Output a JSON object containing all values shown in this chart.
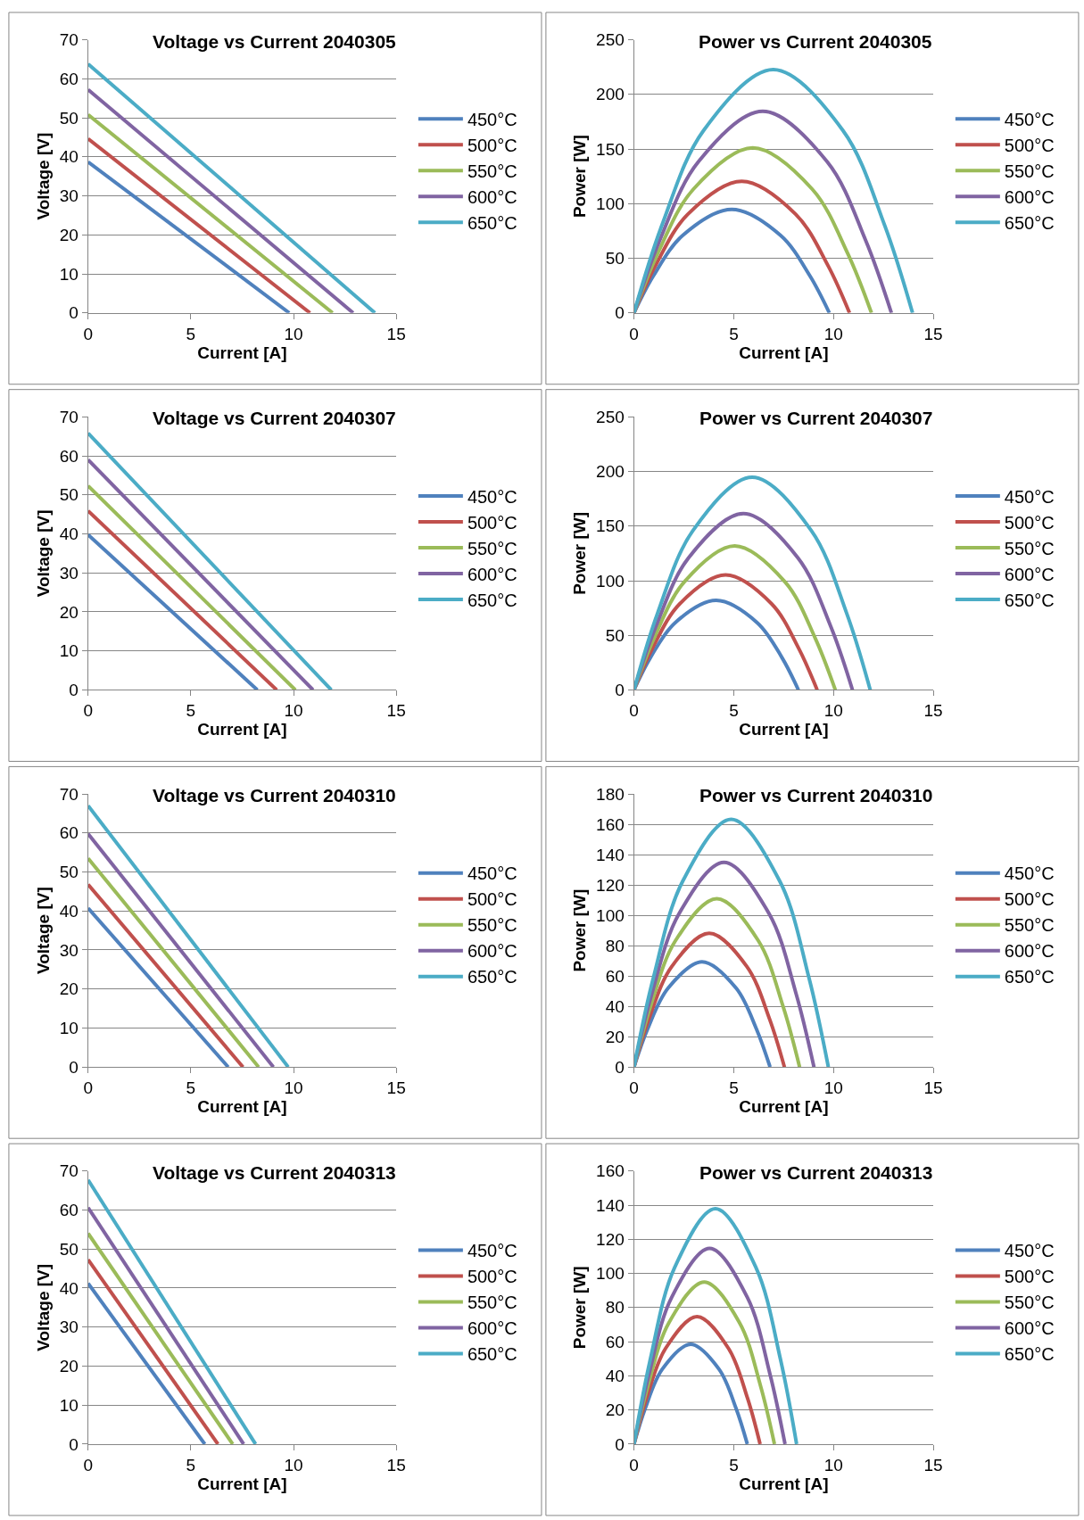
{
  "chart_data": [
    {
      "type": "line",
      "title": "Voltage vs Current 2040305",
      "xlabel": "Current [A]",
      "ylabel": "Voltage [V]",
      "xlim": [
        0,
        15
      ],
      "xticks": [
        0,
        5,
        10,
        15
      ],
      "ylim": [
        0,
        70
      ],
      "yticks": [
        0,
        10,
        20,
        30,
        40,
        50,
        60,
        70
      ],
      "grid": "y",
      "legend": "right",
      "series": [
        {
          "name": "450°C",
          "color": "#4f81bd",
          "x": [
            0,
            9.79
          ],
          "values": [
            38.7,
            0
          ]
        },
        {
          "name": "500°C",
          "color": "#c0504d",
          "x": [
            0,
            10.8
          ],
          "values": [
            44.6,
            0
          ]
        },
        {
          "name": "550°C",
          "color": "#9bbb59",
          "x": [
            0,
            11.9
          ],
          "values": [
            50.8,
            0
          ]
        },
        {
          "name": "600°C",
          "color": "#8064a2",
          "x": [
            0,
            12.9
          ],
          "values": [
            57.2,
            0
          ]
        },
        {
          "name": "650°C",
          "color": "#4bacc6",
          "x": [
            0,
            13.96
          ],
          "values": [
            63.8,
            0
          ]
        }
      ]
    },
    {
      "type": "line",
      "title": "Power vs Current 2040305",
      "xlabel": "Current [A]",
      "ylabel": "Power [W]",
      "xlim": [
        0,
        15
      ],
      "xticks": [
        0,
        5,
        10,
        15
      ],
      "ylim": [
        0,
        250
      ],
      "yticks": [
        0,
        50,
        100,
        150,
        200,
        250
      ],
      "grid": "y",
      "legend": "right",
      "series": [
        {
          "name": "450°C",
          "color": "#4f81bd",
          "x": [
            0,
            0.98,
            2.45,
            4.9,
            7.34,
            8.81,
            9.79
          ],
          "values": [
            0,
            34.1,
            71.0,
            94.7,
            71.0,
            34.1,
            0
          ]
        },
        {
          "name": "500°C",
          "color": "#c0504d",
          "x": [
            0,
            1.08,
            2.7,
            5.4,
            8.1,
            9.72,
            10.8
          ],
          "values": [
            0,
            43.4,
            90.3,
            120.4,
            90.3,
            43.4,
            0
          ]
        },
        {
          "name": "550°C",
          "color": "#9bbb59",
          "x": [
            0,
            1.19,
            2.98,
            5.95,
            8.93,
            10.71,
            11.9
          ],
          "values": [
            0,
            54.4,
            113.3,
            151.1,
            113.3,
            54.4,
            0
          ]
        },
        {
          "name": "600°C",
          "color": "#8064a2",
          "x": [
            0,
            1.29,
            3.23,
            6.45,
            9.68,
            11.61,
            12.9
          ],
          "values": [
            0,
            66.4,
            138.4,
            184.5,
            138.4,
            66.4,
            0
          ]
        },
        {
          "name": "650°C",
          "color": "#4bacc6",
          "x": [
            0,
            1.4,
            3.49,
            6.98,
            10.47,
            12.56,
            13.96
          ],
          "values": [
            0,
            80.2,
            167.0,
            222.7,
            167.0,
            80.2,
            0
          ]
        }
      ]
    },
    {
      "type": "line",
      "title": "Voltage vs Current 2040307",
      "xlabel": "Current [A]",
      "ylabel": "Voltage [V]",
      "xlim": [
        0,
        15
      ],
      "xticks": [
        0,
        5,
        10,
        15
      ],
      "ylim": [
        0,
        70
      ],
      "yticks": [
        0,
        10,
        20,
        30,
        40,
        50,
        60,
        70
      ],
      "grid": "y",
      "legend": "right",
      "series": [
        {
          "name": "450°C",
          "color": "#4f81bd",
          "x": [
            0,
            8.24
          ],
          "values": [
            39.8,
            0
          ]
        },
        {
          "name": "500°C",
          "color": "#c0504d",
          "x": [
            0,
            9.18
          ],
          "values": [
            45.9,
            0
          ]
        },
        {
          "name": "550°C",
          "color": "#9bbb59",
          "x": [
            0,
            10.09
          ],
          "values": [
            52.3,
            0
          ]
        },
        {
          "name": "600°C",
          "color": "#8064a2",
          "x": [
            0,
            10.95
          ],
          "values": [
            59.0,
            0
          ]
        },
        {
          "name": "650°C",
          "color": "#4bacc6",
          "x": [
            0,
            11.84
          ],
          "values": [
            65.8,
            0
          ]
        }
      ]
    },
    {
      "type": "line",
      "title": "Power vs Current 2040307",
      "xlabel": "Current [A]",
      "ylabel": "Power [W]",
      "xlim": [
        0,
        15
      ],
      "xticks": [
        0,
        5,
        10,
        15
      ],
      "ylim": [
        0,
        250
      ],
      "yticks": [
        0,
        50,
        100,
        150,
        200,
        250
      ],
      "grid": "y",
      "legend": "right",
      "series": [
        {
          "name": "450°C",
          "color": "#4f81bd",
          "x": [
            0,
            0.82,
            2.06,
            4.12,
            6.18,
            7.42,
            8.24
          ],
          "values": [
            0,
            29.5,
            61.5,
            82.0,
            61.5,
            29.5,
            0
          ]
        },
        {
          "name": "500°C",
          "color": "#c0504d",
          "x": [
            0,
            0.92,
            2.3,
            4.59,
            6.89,
            8.26,
            9.18
          ],
          "values": [
            0,
            37.9,
            79.0,
            105.3,
            79.0,
            37.9,
            0
          ]
        },
        {
          "name": "550°C",
          "color": "#9bbb59",
          "x": [
            0,
            1.01,
            2.52,
            5.05,
            7.57,
            9.08,
            10.09
          ],
          "values": [
            0,
            47.5,
            98.9,
            131.9,
            98.9,
            47.5,
            0
          ]
        },
        {
          "name": "600°C",
          "color": "#8064a2",
          "x": [
            0,
            1.1,
            2.74,
            5.48,
            8.21,
            9.86,
            10.95
          ],
          "values": [
            0,
            58.1,
            121.1,
            161.5,
            121.1,
            58.1,
            0
          ]
        },
        {
          "name": "650°C",
          "color": "#4bacc6",
          "x": [
            0,
            1.18,
            2.96,
            5.92,
            8.88,
            10.66,
            11.84
          ],
          "values": [
            0,
            70.1,
            146.1,
            194.8,
            146.1,
            70.1,
            0
          ]
        }
      ]
    },
    {
      "type": "line",
      "title": "Voltage vs Current 2040310",
      "xlabel": "Current [A]",
      "ylabel": "Voltage [V]",
      "xlim": [
        0,
        15
      ],
      "xticks": [
        0,
        5,
        10,
        15
      ],
      "ylim": [
        0,
        70
      ],
      "yticks": [
        0,
        10,
        20,
        30,
        40,
        50,
        60,
        70
      ],
      "grid": "y",
      "legend": "right",
      "series": [
        {
          "name": "450°C",
          "color": "#4f81bd",
          "x": [
            0,
            6.82
          ],
          "values": [
            40.7,
            0
          ]
        },
        {
          "name": "500°C",
          "color": "#c0504d",
          "x": [
            0,
            7.54
          ],
          "values": [
            46.8,
            0
          ]
        },
        {
          "name": "550°C",
          "color": "#9bbb59",
          "x": [
            0,
            8.3
          ],
          "values": [
            53.5,
            0
          ]
        },
        {
          "name": "600°C",
          "color": "#8064a2",
          "x": [
            0,
            9.02
          ],
          "values": [
            59.8,
            0
          ]
        },
        {
          "name": "650°C",
          "color": "#4bacc6",
          "x": [
            0,
            9.74
          ],
          "values": [
            67.0,
            0
          ]
        }
      ]
    },
    {
      "type": "line",
      "title": "Power vs Current 2040310",
      "xlabel": "Current [A]",
      "ylabel": "Power [W]",
      "xlim": [
        0,
        15
      ],
      "xticks": [
        0,
        5,
        10,
        15
      ],
      "ylim": [
        0,
        180
      ],
      "yticks": [
        0,
        20,
        40,
        60,
        80,
        100,
        120,
        140,
        160,
        180
      ],
      "grid": "y",
      "legend": "right",
      "series": [
        {
          "name": "450°C",
          "color": "#4f81bd",
          "x": [
            0,
            0.68,
            1.71,
            3.41,
            5.12,
            6.14,
            6.82
          ],
          "values": [
            0,
            25.0,
            52.0,
            69.4,
            52.0,
            25.0,
            0
          ]
        },
        {
          "name": "500°C",
          "color": "#c0504d",
          "x": [
            0,
            0.75,
            1.89,
            3.77,
            5.66,
            6.79,
            7.54
          ],
          "values": [
            0,
            31.8,
            66.2,
            88.2,
            66.2,
            31.8,
            0
          ]
        },
        {
          "name": "550°C",
          "color": "#9bbb59",
          "x": [
            0,
            0.83,
            2.08,
            4.15,
            6.23,
            7.47,
            8.3
          ],
          "values": [
            0,
            40.0,
            83.3,
            111.0,
            83.3,
            40.0,
            0
          ]
        },
        {
          "name": "600°C",
          "color": "#8064a2",
          "x": [
            0,
            0.9,
            2.26,
            4.51,
            6.77,
            8.12,
            9.02
          ],
          "values": [
            0,
            48.5,
            101.1,
            134.9,
            101.1,
            48.5,
            0
          ]
        },
        {
          "name": "650°C",
          "color": "#4bacc6",
          "x": [
            0,
            0.97,
            2.44,
            4.87,
            7.31,
            8.77,
            9.74
          ],
          "values": [
            0,
            58.7,
            122.4,
            163.2,
            122.4,
            58.7,
            0
          ]
        }
      ]
    },
    {
      "type": "line",
      "title": "Voltage vs Current 2040313",
      "xlabel": "Current [A]",
      "ylabel": "Voltage [V]",
      "xlim": [
        0,
        15
      ],
      "xticks": [
        0,
        5,
        10,
        15
      ],
      "ylim": [
        0,
        70
      ],
      "yticks": [
        0,
        10,
        20,
        30,
        40,
        50,
        60,
        70
      ],
      "grid": "y",
      "legend": "right",
      "series": [
        {
          "name": "450°C",
          "color": "#4f81bd",
          "x": [
            0,
            5.68
          ],
          "values": [
            41.2,
            0
          ]
        },
        {
          "name": "500°C",
          "color": "#c0504d",
          "x": [
            0,
            6.32
          ],
          "values": [
            47.3,
            0
          ]
        },
        {
          "name": "550°C",
          "color": "#9bbb59",
          "x": [
            0,
            7.04
          ],
          "values": [
            54.0,
            0
          ]
        },
        {
          "name": "600°C",
          "color": "#8064a2",
          "x": [
            0,
            7.57
          ],
          "values": [
            60.6,
            0
          ]
        },
        {
          "name": "650°C",
          "color": "#4bacc6",
          "x": [
            0,
            8.15
          ],
          "values": [
            67.7,
            0
          ]
        }
      ]
    },
    {
      "type": "line",
      "title": "Power vs Current 2040313",
      "xlabel": "Current [A]",
      "ylabel": "Power [W]",
      "xlim": [
        0,
        15
      ],
      "xticks": [
        0,
        5,
        10,
        15
      ],
      "ylim": [
        0,
        160
      ],
      "yticks": [
        0,
        20,
        40,
        60,
        80,
        100,
        120,
        140,
        160
      ],
      "grid": "y",
      "legend": "right",
      "series": [
        {
          "name": "450°C",
          "color": "#4f81bd",
          "x": [
            0,
            0.57,
            1.42,
            2.84,
            4.26,
            5.11,
            5.68
          ],
          "values": [
            0,
            21.1,
            43.9,
            58.5,
            43.9,
            21.1,
            0
          ]
        },
        {
          "name": "500°C",
          "color": "#c0504d",
          "x": [
            0,
            0.63,
            1.58,
            3.16,
            4.74,
            5.69,
            6.32
          ],
          "values": [
            0,
            26.9,
            56.0,
            74.7,
            56.0,
            26.9,
            0
          ]
        },
        {
          "name": "550°C",
          "color": "#9bbb59",
          "x": [
            0,
            0.7,
            1.76,
            3.52,
            5.28,
            6.34,
            7.04
          ],
          "values": [
            0,
            34.2,
            71.3,
            95.0,
            71.3,
            34.2,
            0
          ]
        },
        {
          "name": "600°C",
          "color": "#8064a2",
          "x": [
            0,
            0.76,
            1.89,
            3.79,
            5.68,
            6.81,
            7.57
          ],
          "values": [
            0,
            41.3,
            86.0,
            114.7,
            86.0,
            41.3,
            0
          ]
        },
        {
          "name": "650°C",
          "color": "#4bacc6",
          "x": [
            0,
            0.82,
            2.04,
            4.08,
            6.11,
            7.34,
            8.15
          ],
          "values": [
            0,
            49.7,
            103.5,
            137.9,
            103.5,
            49.7,
            0
          ]
        }
      ]
    }
  ]
}
